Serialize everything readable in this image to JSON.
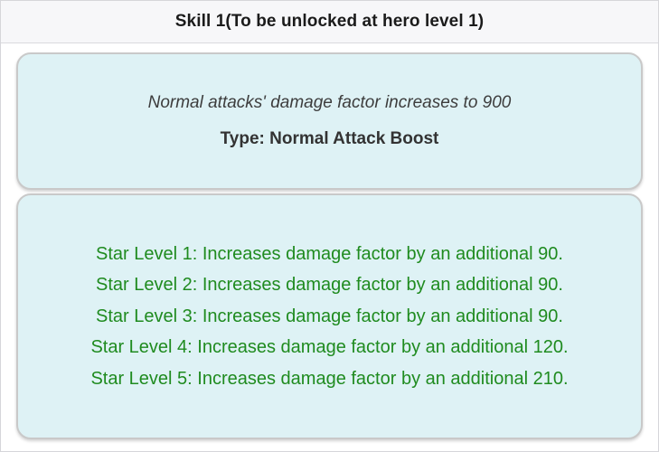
{
  "header": {
    "title": "Skill 1(To be unlocked at hero level 1)"
  },
  "skill_card": {
    "description": "Normal attacks' damage factor increases to 900",
    "type_label": "Type: Normal Attack Boost"
  },
  "star_levels": {
    "lines": [
      "Star Level 1: Increases damage factor by an additional 90.",
      "Star Level 2: Increases damage factor by an additional 90.",
      "Star Level 3: Increases damage factor by an additional 90.",
      "Star Level 4: Increases damage factor by an additional 120.",
      "Star Level 5: Increases damage factor by an additional 210."
    ]
  },
  "colors": {
    "page_background": "#ffffff",
    "page_border": "#d6d6da",
    "header_background": "#f7f7f9",
    "card_background": "#def2f5",
    "card_border": "#c9c9c9",
    "title_text": "#1b1b1b",
    "description_text": "#3d3d3d",
    "type_text": "#333333",
    "star_text": "#1f8b1f"
  }
}
